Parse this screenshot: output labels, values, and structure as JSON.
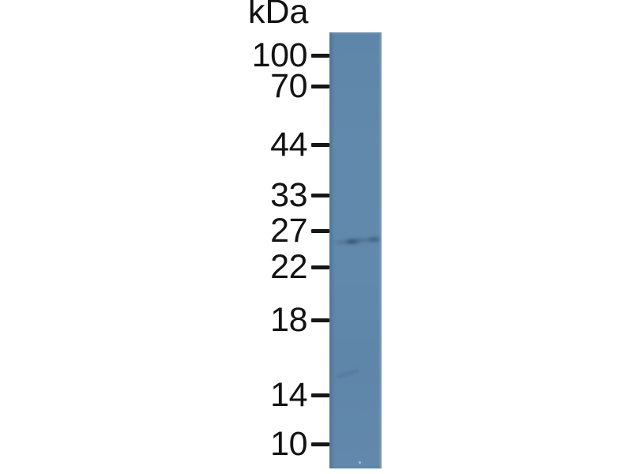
{
  "figure": {
    "kind": "western-blot",
    "unit_label": "kDa",
    "ladder": [
      {
        "kda": 100,
        "label": "100"
      },
      {
        "kda": 70,
        "label": "70"
      },
      {
        "kda": 44,
        "label": "44"
      },
      {
        "kda": 33,
        "label": "33"
      },
      {
        "kda": 27,
        "label": "27"
      },
      {
        "kda": 22,
        "label": "22"
      },
      {
        "kda": 18,
        "label": "18"
      },
      {
        "kda": 14,
        "label": "14"
      },
      {
        "kda": 10,
        "label": "10"
      }
    ],
    "lanes": [
      {
        "name": "lane-1",
        "bands": [
          {
            "approx_kda": 25,
            "intensity": "strong",
            "position_between_markers": "27-22"
          }
        ]
      }
    ],
    "colors": {
      "background": "#ffffff",
      "lane_fill": "#6089ac",
      "band": "#24455e",
      "text": "#141414"
    }
  },
  "chart_data": {
    "type": "western-blot",
    "y_axis": {
      "unit": "kDa",
      "ticks": [
        100,
        70,
        44,
        33,
        27,
        22,
        18,
        14,
        10
      ]
    },
    "lanes": 1,
    "bands": [
      {
        "lane": 1,
        "approx_kda": 25
      }
    ]
  }
}
